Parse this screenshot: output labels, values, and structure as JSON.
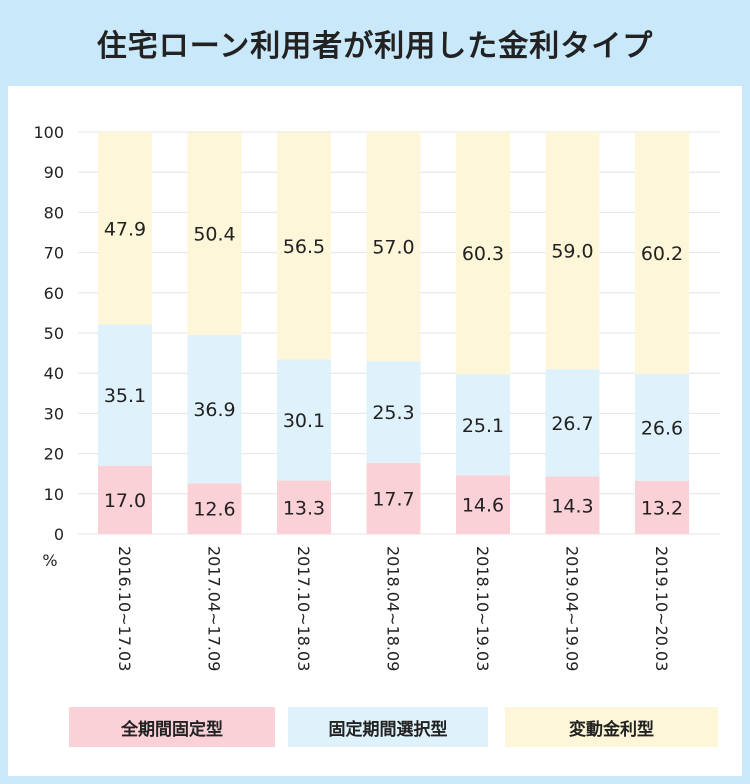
{
  "title": "住宅ローン利用者が利用した金利タイプ",
  "colors": {
    "fixed_full": "#fbd1d8",
    "fixed_select": "#dff2fb",
    "variable": "#fdf6d8",
    "grid": "#e4e4e4",
    "text": "#222222"
  },
  "chart_data": {
    "type": "bar",
    "stacked": true,
    "title": "住宅ローン利用者が利用した金利タイプ",
    "xlabel": "",
    "ylabel": "%",
    "ylim": [
      0,
      100
    ],
    "yticks": [
      0,
      10,
      20,
      30,
      40,
      50,
      60,
      70,
      80,
      90,
      100
    ],
    "categories": [
      "2016.10~17.03",
      "2017.04~17.09",
      "2017.10~18.03",
      "2018.04~18.09",
      "2018.10~19.03",
      "2019.04~19.09",
      "2019.10~20.03"
    ],
    "series": [
      {
        "name": "全期間固定型",
        "values": [
          17.0,
          12.6,
          13.3,
          17.7,
          14.6,
          14.3,
          13.2
        ],
        "labels": [
          "17.0",
          "12.6",
          "13.3",
          "17.7",
          "14.6",
          "14.3",
          "13.2"
        ]
      },
      {
        "name": "固定期間選択型",
        "values": [
          35.1,
          36.9,
          30.1,
          25.3,
          25.1,
          26.7,
          26.6
        ],
        "labels": [
          "35.1",
          "36.9",
          "30.1",
          "25.3",
          "25.1",
          "26.7",
          "26.6"
        ]
      },
      {
        "name": "変動金利型",
        "values": [
          47.9,
          50.4,
          56.5,
          57.0,
          60.3,
          59.0,
          60.2
        ],
        "labels": [
          "47.9",
          "50.4",
          "56.5",
          "57.0",
          "60.3",
          "59.0",
          "60.2"
        ]
      }
    ],
    "legend": {
      "position": "bottom",
      "labels": [
        "全期間固定型",
        "固定期間選択型",
        "変動金利型"
      ]
    }
  }
}
